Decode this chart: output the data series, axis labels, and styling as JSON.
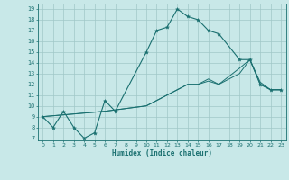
{
  "title": "",
  "xlabel": "Humidex (Indice chaleur)",
  "background_color": "#c8e8e8",
  "grid_color": "#a0c8c8",
  "line_color": "#1a7070",
  "xlim": [
    -0.5,
    23.5
  ],
  "ylim": [
    6.8,
    19.5
  ],
  "xticks": [
    0,
    1,
    2,
    3,
    4,
    5,
    6,
    7,
    8,
    9,
    10,
    11,
    12,
    13,
    14,
    15,
    16,
    17,
    18,
    19,
    20,
    21,
    22,
    23
  ],
  "yticks": [
    7,
    8,
    9,
    10,
    11,
    12,
    13,
    14,
    15,
    16,
    17,
    18,
    19
  ],
  "line1_x": [
    0,
    1,
    2,
    3,
    4,
    5,
    6,
    7,
    10,
    11,
    12,
    13,
    14,
    15,
    16,
    17,
    19,
    20,
    21,
    22,
    23
  ],
  "line1_y": [
    9,
    8,
    9.5,
    8,
    7,
    7.5,
    10.5,
    9.5,
    15,
    17,
    17.3,
    19,
    18.3,
    18,
    17,
    16.7,
    14.3,
    14.3,
    12,
    11.5,
    11.5
  ],
  "line2_x": [
    0,
    6,
    10,
    11,
    12,
    13,
    14,
    15,
    16,
    17,
    19,
    20,
    21,
    22,
    23
  ],
  "line2_y": [
    9,
    9.5,
    10,
    10.5,
    11,
    11.5,
    12,
    12,
    12.5,
    12,
    13,
    14.3,
    12,
    11.5,
    11.5
  ],
  "line3_x": [
    0,
    6,
    10,
    11,
    12,
    13,
    14,
    15,
    16,
    17,
    19,
    20,
    21,
    22,
    23
  ],
  "line3_y": [
    9,
    9.5,
    10,
    10.5,
    11,
    11.5,
    12,
    12,
    12.3,
    12,
    13.5,
    14.3,
    12.2,
    11.5,
    11.5
  ]
}
